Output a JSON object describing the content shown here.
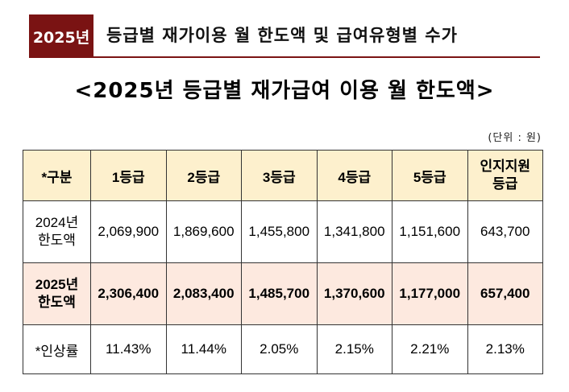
{
  "header": {
    "year_badge": "2025년",
    "title": "등급별 재가이용 월 한도액 및 급여유형별 수가"
  },
  "document": {
    "title": "<2025년 등급별 재가급여 이용 월 한도액>",
    "unit": "(단위 : 원)"
  },
  "table": {
    "columns": [
      "*구분",
      "1등급",
      "2등급",
      "3등급",
      "4등급",
      "5등급",
      "인지지원 등급"
    ],
    "rows": [
      {
        "label": "2024년 한도액",
        "cells": [
          "2,069,900",
          "1,869,600",
          "1,455,800",
          "1,341,800",
          "1,151,600",
          "643,700"
        ]
      },
      {
        "label": "2025년 한도액",
        "cells": [
          "2,306,400",
          "2,083,400",
          "1,485,700",
          "1,370,600",
          "1,177,000",
          "657,400"
        ]
      },
      {
        "label": "*인상률",
        "cells": [
          "11.43%",
          "11.44%",
          "2.05%",
          "2.15%",
          "2.21%",
          "2.13%"
        ]
      }
    ]
  },
  "colors": {
    "accent": "#7a1313",
    "header_fill": "#fdf0cd",
    "highlight_row_fill": "#fde9df"
  }
}
